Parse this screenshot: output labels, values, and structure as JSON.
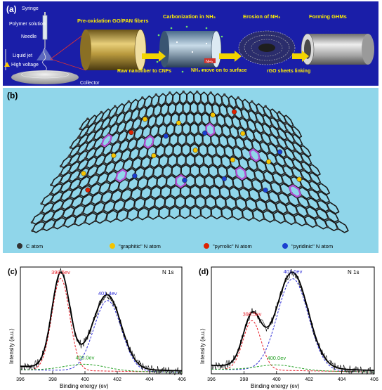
{
  "panel_a": {
    "label": "(a)",
    "apparatus": {
      "syringe": "Syringe",
      "polymer": "Polymer solution",
      "needle": "Needle",
      "liquid_jet": "Liquid jet",
      "high_voltage": "High voltage",
      "collector": "Collector"
    },
    "stages": [
      "Pre-oxidation GO/PAN fibers",
      "Carbonization in NH₃",
      "Erosion of NH₃",
      "Forming GHMs"
    ],
    "arrows": [
      "Raw nanofiber to CNFs",
      "NH₃ move on to surface",
      "rGO sheets linking"
    ],
    "arrow_tag": "NH₃",
    "colors": {
      "background": "#1a1ea8",
      "stage_text": "#ffee00",
      "arrow": "#f2d400"
    }
  },
  "panel_b": {
    "label": "(b)",
    "legend": [
      {
        "text": "C atom",
        "color": "#333333"
      },
      {
        "text": "\"graphitic\" N atom",
        "color": "#f5c400"
      },
      {
        "text": "\"pyrrolic\" N atom",
        "color": "#dd2200"
      },
      {
        "text": "\"pyridinic\" N atom",
        "color": "#1a3fd0"
      }
    ],
    "colors": {
      "background": "#90d6ea",
      "bond": "#1a1a1a",
      "highlight": "#b44fd6"
    }
  },
  "chart_data": [
    {
      "type": "line",
      "panel": "(c)",
      "title": "N 1s",
      "xlabel": "Binding energy (ev)",
      "ylabel": "Intensity (a.u.)",
      "xlim": [
        396,
        406
      ],
      "xticks": [
        396,
        398,
        400,
        402,
        404,
        406
      ],
      "peaks": [
        {
          "label": "398.5ev",
          "center": 398.5,
          "height": 0.86,
          "width": 0.55,
          "color": "#e8202a"
        },
        {
          "label": "401.4ev",
          "center": 401.4,
          "height": 0.66,
          "width": 0.85,
          "color": "#2b2bd6"
        },
        {
          "label": "400.0ev",
          "center": 400.0,
          "height": 0.06,
          "width": 1.3,
          "color": "#22a022"
        }
      ],
      "baseline": 0.07,
      "grid": false
    },
    {
      "type": "line",
      "panel": "(d)",
      "title": "N 1s",
      "xlabel": "Binding energy (ev)",
      "ylabel": "Intensity (a.u.)",
      "xlim": [
        396,
        406
      ],
      "xticks": [
        396,
        398,
        400,
        402,
        404,
        406
      ],
      "peaks": [
        {
          "label": "398.5ev",
          "center": 398.5,
          "height": 0.46,
          "width": 0.55,
          "color": "#e8202a"
        },
        {
          "label": "401.0ev",
          "center": 401.0,
          "height": 0.86,
          "width": 0.95,
          "color": "#2b2bd6"
        },
        {
          "label": "400.0ev",
          "center": 400.0,
          "height": 0.05,
          "width": 1.2,
          "color": "#22a022"
        }
      ],
      "baseline": 0.08,
      "grid": false
    }
  ]
}
